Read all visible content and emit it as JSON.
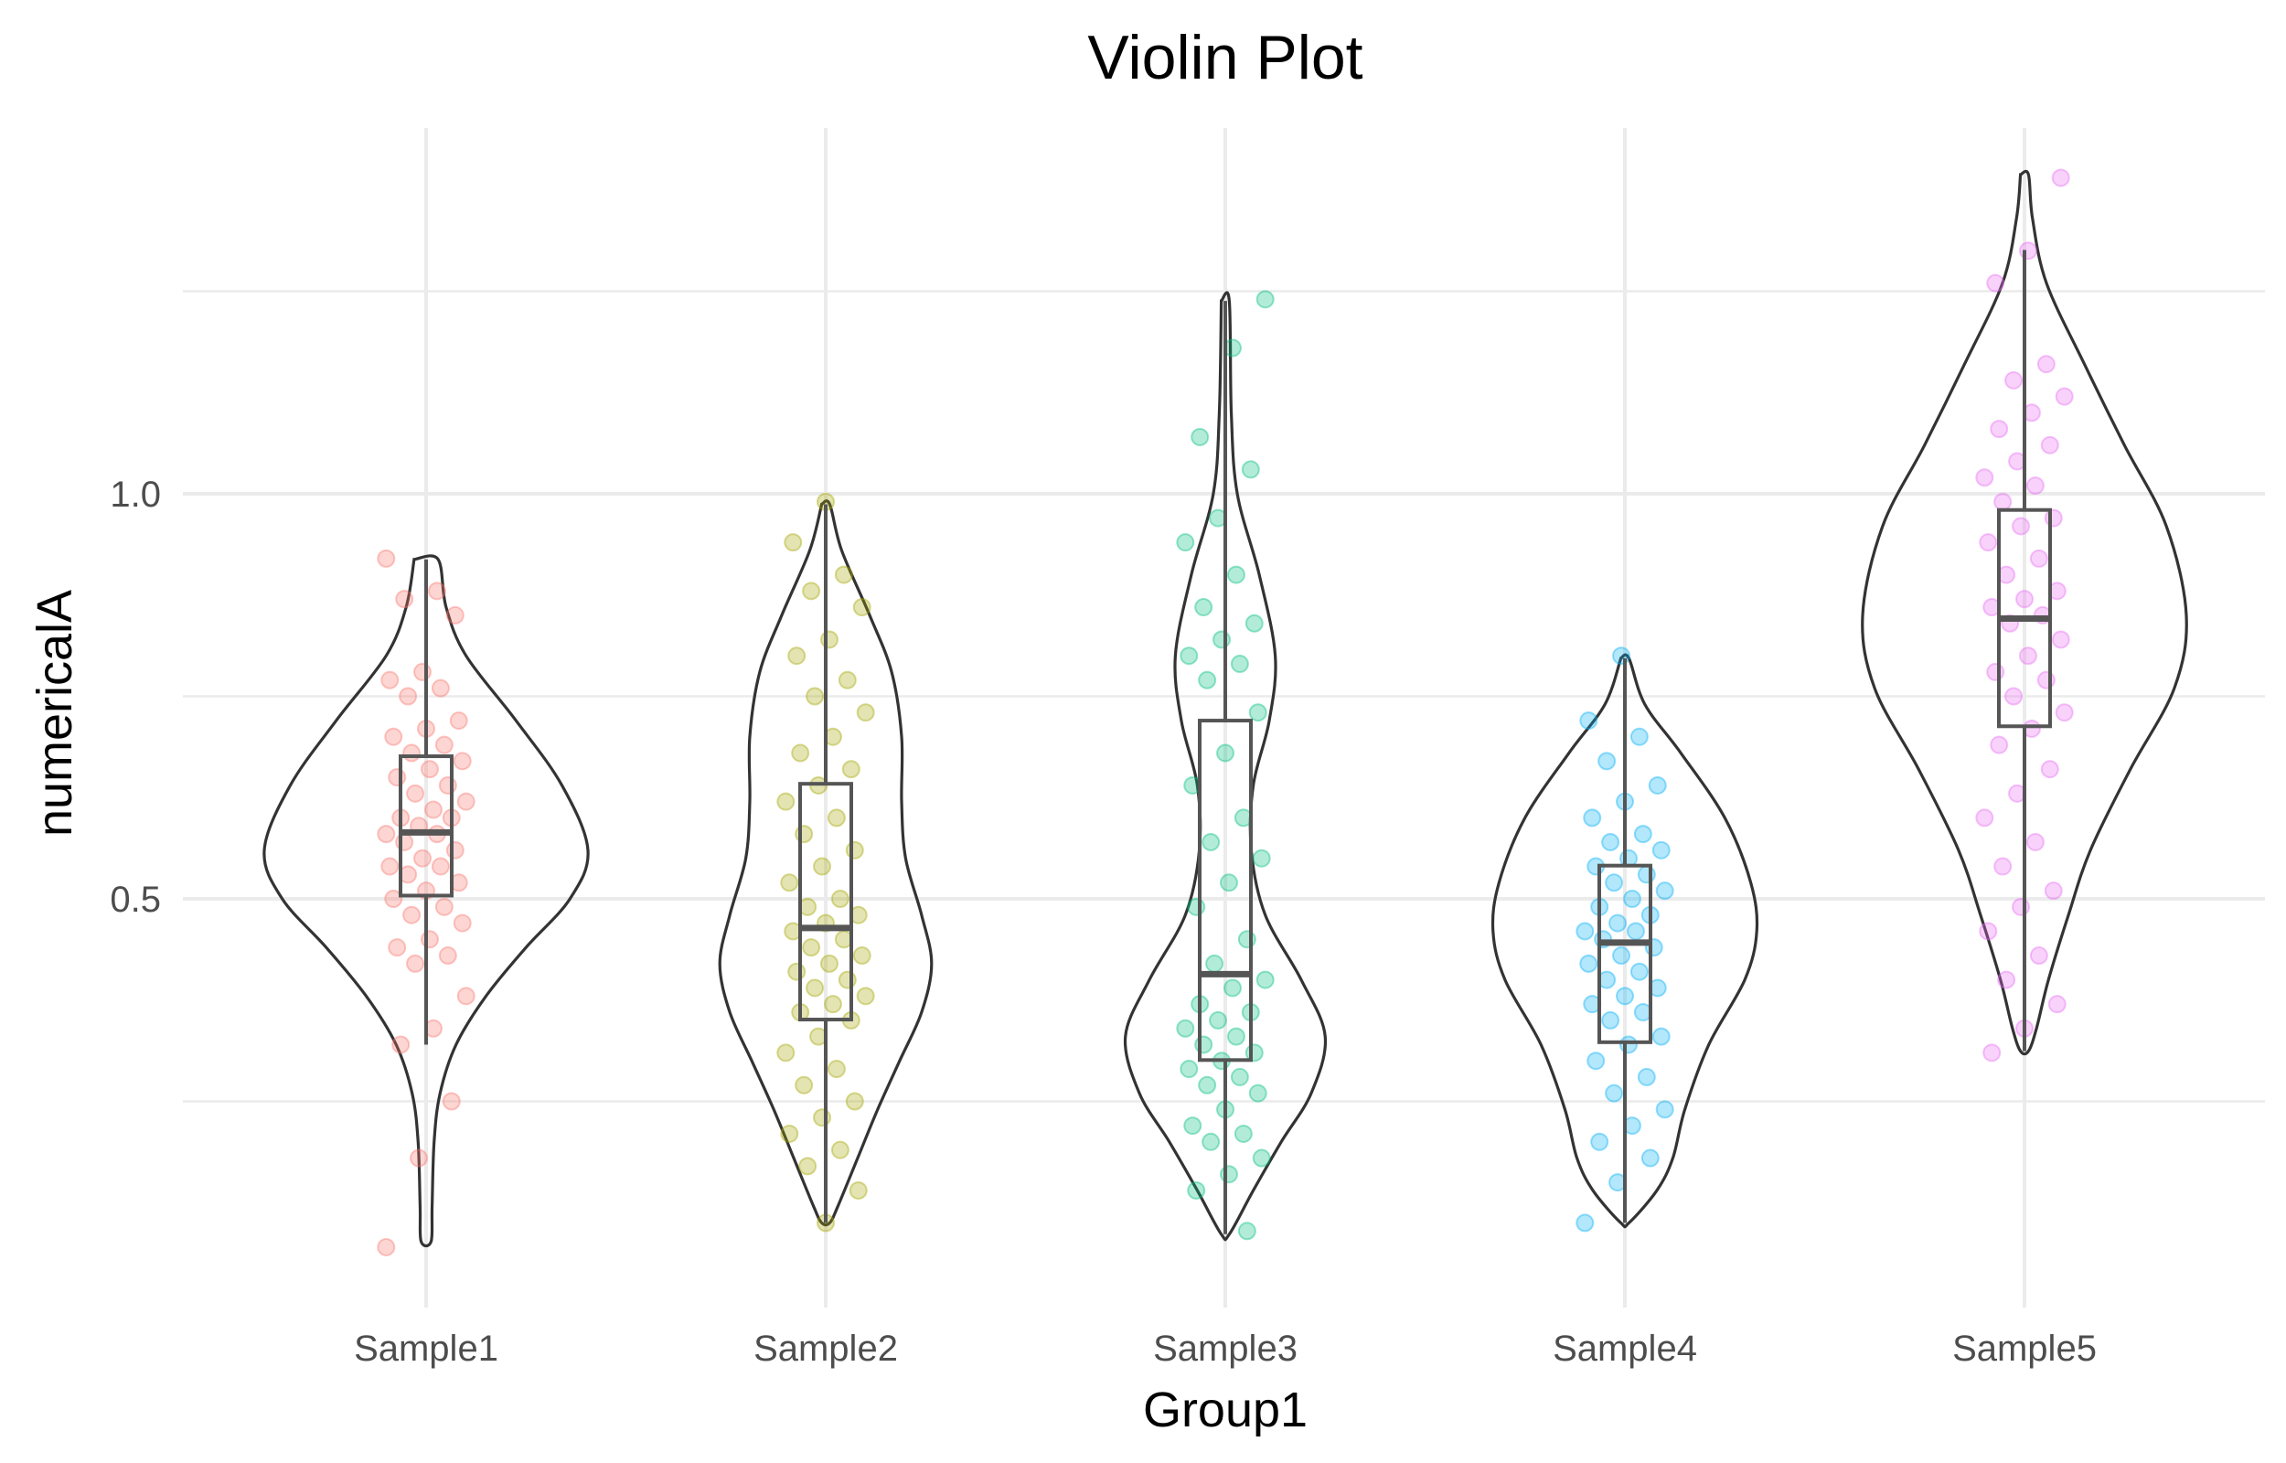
{
  "chart_data": {
    "type": "violin",
    "title": "Violin Plot",
    "xlabel": "Group1",
    "ylabel": "numericalA",
    "categories": [
      "Sample1",
      "Sample2",
      "Sample3",
      "Sample4",
      "Sample5"
    ],
    "ylim": [
      0.05,
      1.45
    ],
    "yticks": [
      0.5,
      1.0
    ],
    "ytick_labels": [
      "0.5",
      "1.0"
    ],
    "minor_yticks": [
      0.25,
      0.75,
      1.25
    ],
    "grid": true,
    "legend": "none",
    "colors": [
      "#F8766D",
      "#A3A500",
      "#00BF7D",
      "#00B0F6",
      "#E76BF3"
    ],
    "series": [
      {
        "box": {
          "lower_whisker": 0.32,
          "q1": 0.504,
          "median": 0.582,
          "q3": 0.676,
          "upper_whisker": 0.919
        },
        "violin": [
          [
            0.919,
            0.06
          ],
          [
            0.86,
            0.1
          ],
          [
            0.8,
            0.2
          ],
          [
            0.72,
            0.45
          ],
          [
            0.64,
            0.68
          ],
          [
            0.56,
            0.81
          ],
          [
            0.5,
            0.72
          ],
          [
            0.44,
            0.5
          ],
          [
            0.38,
            0.3
          ],
          [
            0.32,
            0.15
          ],
          [
            0.26,
            0.07
          ],
          [
            0.2,
            0.04
          ],
          [
            0.12,
            0.03
          ],
          [
            0.077,
            0.025
          ]
        ],
        "points": [
          0.92,
          0.88,
          0.87,
          0.85,
          0.78,
          0.77,
          0.76,
          0.75,
          0.72,
          0.71,
          0.7,
          0.69,
          0.68,
          0.67,
          0.66,
          0.65,
          0.64,
          0.63,
          0.62,
          0.61,
          0.6,
          0.6,
          0.59,
          0.58,
          0.58,
          0.57,
          0.56,
          0.55,
          0.54,
          0.54,
          0.53,
          0.52,
          0.51,
          0.5,
          0.49,
          0.48,
          0.47,
          0.45,
          0.44,
          0.43,
          0.42,
          0.38,
          0.34,
          0.32,
          0.25,
          0.18,
          0.07
        ]
      },
      {
        "box": {
          "lower_whisker": 0.1,
          "q1": 0.351,
          "median": 0.464,
          "q3": 0.642,
          "upper_whisker": 0.987
        },
        "violin": [
          [
            0.987,
            0.02
          ],
          [
            0.93,
            0.08
          ],
          [
            0.85,
            0.22
          ],
          [
            0.78,
            0.33
          ],
          [
            0.7,
            0.38
          ],
          [
            0.62,
            0.38
          ],
          [
            0.55,
            0.4
          ],
          [
            0.48,
            0.48
          ],
          [
            0.42,
            0.53
          ],
          [
            0.36,
            0.48
          ],
          [
            0.3,
            0.37
          ],
          [
            0.24,
            0.26
          ],
          [
            0.18,
            0.16
          ],
          [
            0.12,
            0.06
          ],
          [
            0.1,
            0.02
          ]
        ],
        "points": [
          0.99,
          0.94,
          0.9,
          0.88,
          0.86,
          0.82,
          0.8,
          0.77,
          0.75,
          0.73,
          0.7,
          0.68,
          0.66,
          0.64,
          0.62,
          0.6,
          0.58,
          0.56,
          0.54,
          0.52,
          0.5,
          0.49,
          0.48,
          0.47,
          0.46,
          0.45,
          0.44,
          0.43,
          0.42,
          0.41,
          0.4,
          0.39,
          0.38,
          0.37,
          0.36,
          0.35,
          0.33,
          0.31,
          0.29,
          0.27,
          0.25,
          0.23,
          0.21,
          0.19,
          0.17,
          0.14,
          0.1
        ]
      },
      {
        "box": {
          "lower_whisker": 0.086,
          "q1": 0.301,
          "median": 0.407,
          "q3": 0.72,
          "upper_whisker": 1.238
        },
        "violin": [
          [
            1.238,
            0.02
          ],
          [
            1.1,
            0.03
          ],
          [
            1.0,
            0.06
          ],
          [
            0.9,
            0.17
          ],
          [
            0.8,
            0.25
          ],
          [
            0.72,
            0.22
          ],
          [
            0.64,
            0.14
          ],
          [
            0.56,
            0.13
          ],
          [
            0.48,
            0.2
          ],
          [
            0.4,
            0.38
          ],
          [
            0.33,
            0.5
          ],
          [
            0.26,
            0.43
          ],
          [
            0.2,
            0.28
          ],
          [
            0.14,
            0.14
          ],
          [
            0.086,
            0.02
          ]
        ],
        "points": [
          1.24,
          1.18,
          1.07,
          1.03,
          0.97,
          0.94,
          0.9,
          0.86,
          0.84,
          0.82,
          0.8,
          0.79,
          0.77,
          0.73,
          0.68,
          0.64,
          0.6,
          0.57,
          0.55,
          0.52,
          0.49,
          0.45,
          0.42,
          0.4,
          0.39,
          0.37,
          0.36,
          0.35,
          0.34,
          0.33,
          0.32,
          0.31,
          0.3,
          0.29,
          0.28,
          0.27,
          0.26,
          0.24,
          0.22,
          0.21,
          0.2,
          0.18,
          0.16,
          0.14,
          0.09
        ]
      },
      {
        "box": {
          "lower_whisker": 0.1,
          "q1": 0.323,
          "median": 0.446,
          "q3": 0.541,
          "upper_whisker": 0.797
        },
        "violin": [
          [
            0.797,
            0.02
          ],
          [
            0.74,
            0.1
          ],
          [
            0.68,
            0.28
          ],
          [
            0.6,
            0.5
          ],
          [
            0.52,
            0.63
          ],
          [
            0.46,
            0.66
          ],
          [
            0.4,
            0.6
          ],
          [
            0.32,
            0.42
          ],
          [
            0.24,
            0.3
          ],
          [
            0.18,
            0.24
          ],
          [
            0.14,
            0.16
          ],
          [
            0.1,
            0.02
          ]
        ],
        "points": [
          0.8,
          0.72,
          0.7,
          0.67,
          0.64,
          0.62,
          0.6,
          0.58,
          0.57,
          0.56,
          0.55,
          0.54,
          0.53,
          0.52,
          0.51,
          0.5,
          0.49,
          0.48,
          0.47,
          0.46,
          0.46,
          0.45,
          0.44,
          0.43,
          0.42,
          0.41,
          0.4,
          0.39,
          0.38,
          0.37,
          0.36,
          0.35,
          0.33,
          0.32,
          0.3,
          0.28,
          0.26,
          0.24,
          0.22,
          0.2,
          0.18,
          0.15,
          0.1
        ]
      },
      {
        "box": {
          "lower_whisker": 0.312,
          "q1": 0.713,
          "median": 0.846,
          "q3": 0.98,
          "upper_whisker": 1.301
        },
        "violin": [
          [
            1.394,
            0.02
          ],
          [
            1.34,
            0.04
          ],
          [
            1.26,
            0.11
          ],
          [
            1.16,
            0.3
          ],
          [
            1.06,
            0.5
          ],
          [
            0.96,
            0.71
          ],
          [
            0.85,
            0.81
          ],
          [
            0.76,
            0.75
          ],
          [
            0.66,
            0.53
          ],
          [
            0.56,
            0.33
          ],
          [
            0.48,
            0.22
          ],
          [
            0.4,
            0.12
          ],
          [
            0.34,
            0.06
          ],
          [
            0.312,
            0.02
          ]
        ],
        "points": [
          1.39,
          1.3,
          1.26,
          1.16,
          1.14,
          1.12,
          1.1,
          1.08,
          1.06,
          1.04,
          1.02,
          1.01,
          0.99,
          0.97,
          0.96,
          0.94,
          0.92,
          0.9,
          0.88,
          0.87,
          0.86,
          0.85,
          0.84,
          0.82,
          0.8,
          0.78,
          0.77,
          0.75,
          0.73,
          0.71,
          0.69,
          0.66,
          0.63,
          0.6,
          0.57,
          0.54,
          0.51,
          0.49,
          0.46,
          0.43,
          0.4,
          0.37,
          0.34,
          0.31
        ]
      }
    ]
  }
}
